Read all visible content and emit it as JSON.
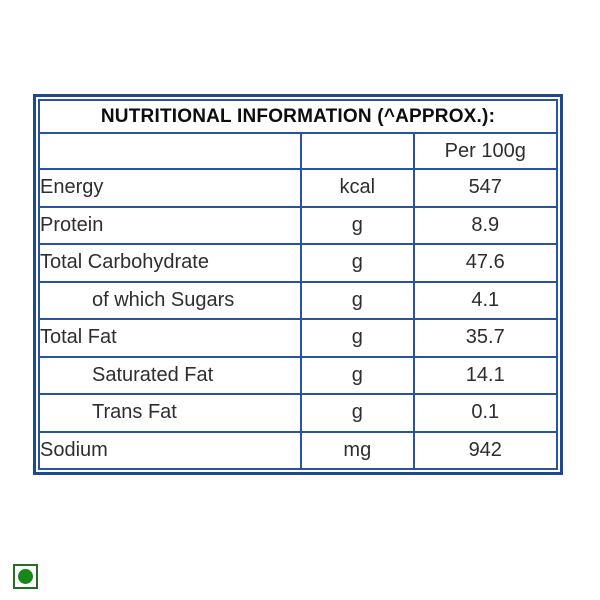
{
  "colors": {
    "table-border": "#2a52a2",
    "outer-border": "#20478f",
    "text-dark": "#2e2e2e",
    "title-color": "#0d0d0d",
    "veg-square": "#266c26",
    "veg-dot": "#17871a",
    "page-bg": "#ffffff"
  },
  "table": {
    "title": "NUTRITIONAL INFORMATION (^APPROX.):",
    "header": {
      "label_col": "",
      "unit_col": "",
      "value_col": "Per 100g"
    },
    "rows": [
      {
        "label": "Energy",
        "unit": "kcal",
        "value": "547",
        "indent": false
      },
      {
        "label": "Protein",
        "unit": "g",
        "value": "8.9",
        "indent": false
      },
      {
        "label": "Total Carbohydrate",
        "unit": "g",
        "value": "47.6",
        "indent": false
      },
      {
        "label": "of which Sugars",
        "unit": "g",
        "value": "4.1",
        "indent": true
      },
      {
        "label": "Total Fat",
        "unit": "g",
        "value": "35.7",
        "indent": false
      },
      {
        "label": "Saturated Fat",
        "unit": "g",
        "value": "14.1",
        "indent": true
      },
      {
        "label": "Trans Fat",
        "unit": "g",
        "value": "0.1",
        "indent": true
      },
      {
        "label": "Sodium",
        "unit": "mg",
        "value": "942",
        "indent": false
      }
    ]
  },
  "veg_mark": {
    "type": "vegetarian-symbol"
  }
}
